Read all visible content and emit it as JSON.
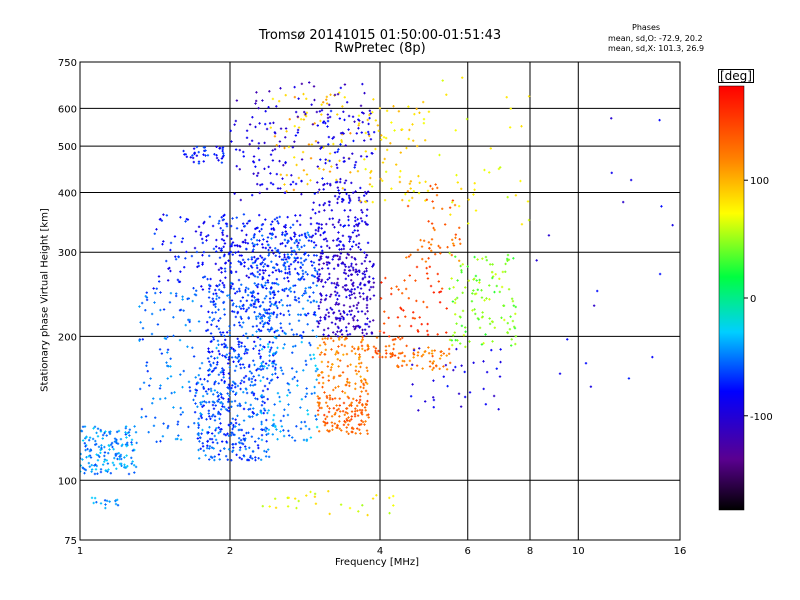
{
  "chart_data": {
    "type": "scatter",
    "title": "Tromsø 20141015 01:50:00-01:51:43",
    "subtitle": "RwPretec (8p)",
    "xlabel": "Frequency [MHz]",
    "ylabel": "Stationary phase Virtual Height [km]",
    "x_scale": "log",
    "y_scale": "log",
    "xlim": [
      1,
      16
    ],
    "ylim": [
      75,
      750
    ],
    "x_ticks": [
      1,
      2,
      4,
      6,
      8,
      10,
      16
    ],
    "y_ticks": [
      75,
      100,
      200,
      300,
      400,
      500,
      600,
      750
    ],
    "grid": true,
    "phases_header": "Phases",
    "phase_stats": [
      "mean, sd,O: -72.9, 20.2",
      "mean, sd,X: 101.3, 26.9"
    ],
    "colorbar": {
      "label": "[deg]",
      "ticks": [
        100,
        0,
        -100
      ],
      "range": [
        -180,
        180
      ],
      "colormap": "rainbow (black-purple-blue-cyan-green-yellow-orange-red)"
    },
    "series": [
      {
        "clusters": [
          {
            "fmin": 1.0,
            "fmax": 1.3,
            "hmin": 103,
            "hmax": 130,
            "phase": -45,
            "n": 160
          },
          {
            "fmin": 1.05,
            "fmax": 1.2,
            "hmin": 87,
            "hmax": 92,
            "phase": -45,
            "n": 15
          },
          {
            "fmin": 1.3,
            "fmax": 1.9,
            "hmin": 120,
            "hmax": 250,
            "phase": -55,
            "n": 150
          },
          {
            "fmin": 1.4,
            "fmax": 2.0,
            "hmin": 250,
            "hmax": 360,
            "phase": -78,
            "n": 90
          },
          {
            "fmin": 1.6,
            "fmax": 1.95,
            "hmin": 460,
            "hmax": 500,
            "phase": -75,
            "n": 40
          },
          {
            "fmin": 1.7,
            "fmax": 2.4,
            "hmin": 110,
            "hmax": 160,
            "phase": -60,
            "n": 280
          },
          {
            "fmin": 1.8,
            "fmax": 2.5,
            "hmin": 160,
            "hmax": 260,
            "phase": -65,
            "n": 320
          },
          {
            "fmin": 1.9,
            "fmax": 2.8,
            "hmin": 260,
            "hmax": 360,
            "phase": -78,
            "n": 200
          },
          {
            "fmin": 2.2,
            "fmax": 3.0,
            "hmin": 200,
            "hmax": 330,
            "phase": -62,
            "n": 240
          },
          {
            "fmin": 2.0,
            "fmax": 2.8,
            "hmin": 380,
            "hmax": 560,
            "phase": -95,
            "n": 70
          },
          {
            "fmin": 2.3,
            "fmax": 3.0,
            "hmin": 120,
            "hmax": 200,
            "phase": -45,
            "n": 120
          },
          {
            "fmin": 2.4,
            "fmax": 3.5,
            "hmin": 400,
            "hmax": 650,
            "phase": 95,
            "n": 70
          },
          {
            "fmin": 2.0,
            "fmax": 3.8,
            "hmin": 520,
            "hmax": 680,
            "phase": -105,
            "n": 50
          },
          {
            "fmin": 3.0,
            "fmax": 3.9,
            "hmin": 200,
            "hmax": 300,
            "phase": -105,
            "n": 260
          },
          {
            "fmin": 2.9,
            "fmax": 3.8,
            "hmin": 300,
            "hmax": 420,
            "phase": -92,
            "n": 140
          },
          {
            "fmin": 3.0,
            "fmax": 3.9,
            "hmin": 420,
            "hmax": 600,
            "phase": -88,
            "n": 70
          },
          {
            "fmin": 3.0,
            "fmax": 3.8,
            "hmin": 125,
            "hmax": 150,
            "phase": 135,
            "n": 130
          },
          {
            "fmin": 3.0,
            "fmax": 3.8,
            "hmin": 150,
            "hmax": 200,
            "phase": 120,
            "n": 110
          },
          {
            "fmin": 3.6,
            "fmax": 4.6,
            "hmin": 180,
            "hmax": 200,
            "phase": 135,
            "n": 45
          },
          {
            "fmin": 3.6,
            "fmax": 5.0,
            "hmin": 380,
            "hmax": 640,
            "phase": 85,
            "n": 80
          },
          {
            "fmin": 4.0,
            "fmax": 5.5,
            "hmin": 200,
            "hmax": 280,
            "phase": 150,
            "n": 55
          },
          {
            "fmin": 4.3,
            "fmax": 5.6,
            "hmin": 170,
            "hmax": 190,
            "phase": 125,
            "n": 50
          },
          {
            "fmin": 4.5,
            "fmax": 5.8,
            "hmin": 280,
            "hmax": 420,
            "phase": 130,
            "n": 50
          },
          {
            "fmin": 5.5,
            "fmax": 7.5,
            "hmin": 190,
            "hmax": 300,
            "phase": 45,
            "n": 120
          },
          {
            "fmin": 4.5,
            "fmax": 7.0,
            "hmin": 140,
            "hmax": 190,
            "phase": -92,
            "n": 35
          },
          {
            "fmin": 5.0,
            "fmax": 8.0,
            "hmin": 330,
            "hmax": 700,
            "phase": 75,
            "n": 35
          },
          {
            "fmin": 2.3,
            "fmax": 4.3,
            "hmin": 84,
            "hmax": 95,
            "phase": 70,
            "n": 28
          },
          {
            "fmin": 8.0,
            "fmax": 15.5,
            "hmin": 150,
            "hmax": 640,
            "phase": -90,
            "n": 18
          }
        ]
      }
    ]
  }
}
